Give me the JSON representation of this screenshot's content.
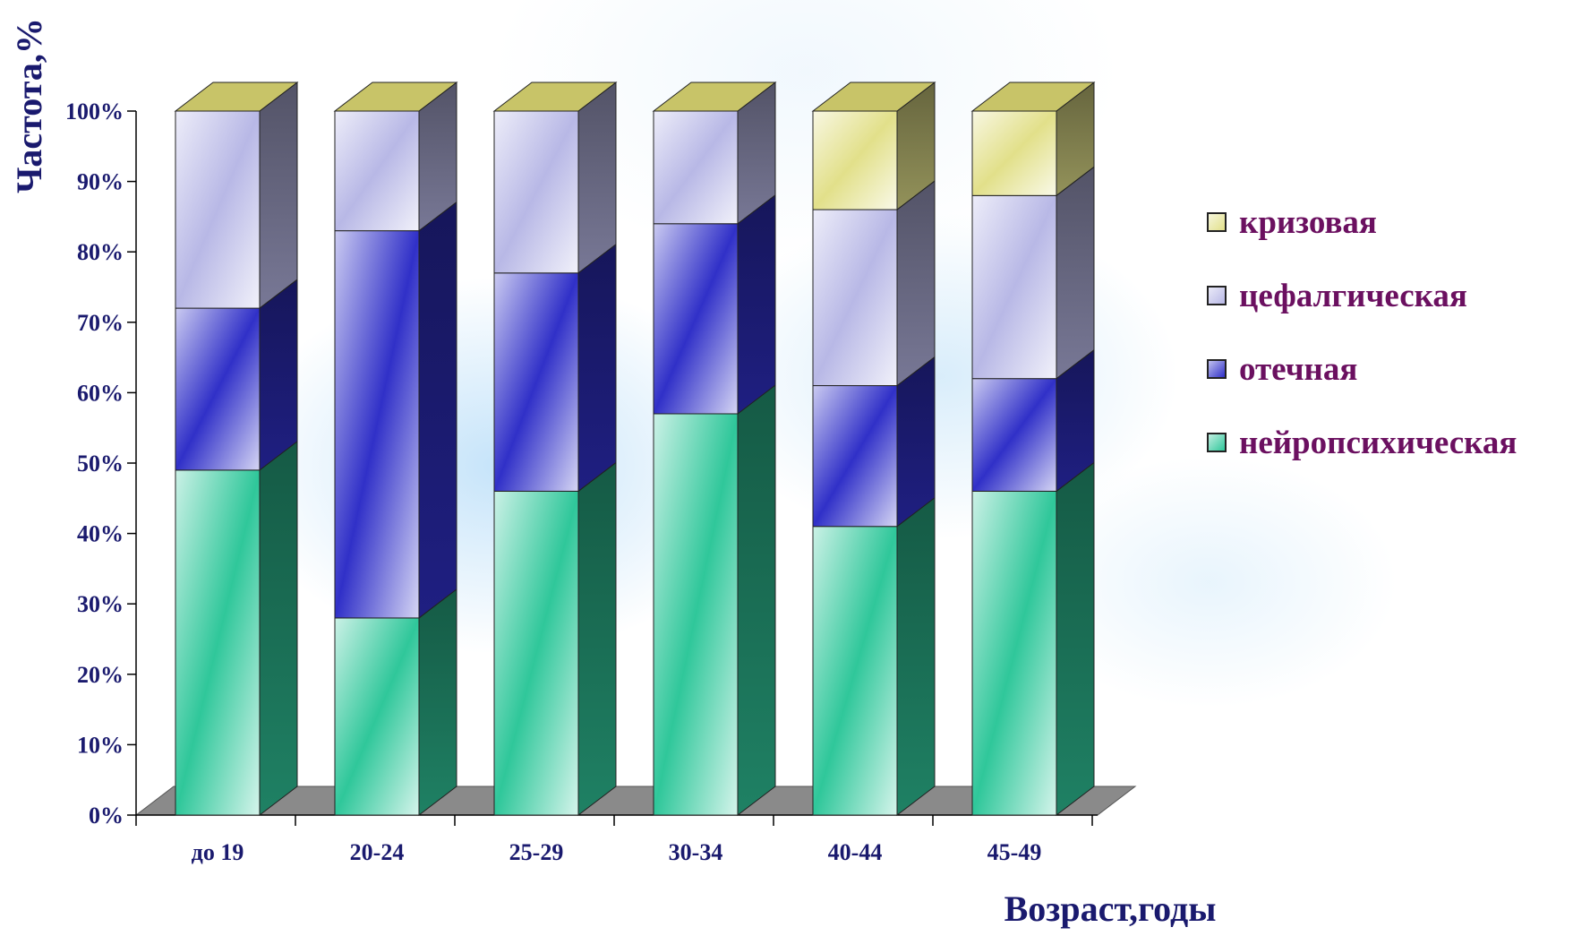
{
  "chart_data": {
    "type": "bar",
    "stacked": true,
    "three_d": true,
    "ylabel": "Частота,%",
    "xlabel": "Возраст,годы",
    "ylim": [
      0,
      100
    ],
    "yticks": [
      "0%",
      "10%",
      "20%",
      "30%",
      "40%",
      "50%",
      "60%",
      "70%",
      "80%",
      "90%",
      "100%"
    ],
    "categories": [
      "до 19",
      "20-24",
      "25-29",
      "30-34",
      "40-44",
      "45-49"
    ],
    "series": [
      {
        "name": "нейропсихическая",
        "values": [
          49,
          28,
          46,
          57,
          41,
          46
        ],
        "color": "#2fc79a"
      },
      {
        "name": "отечная",
        "values": [
          23,
          55,
          31,
          27,
          20,
          16
        ],
        "color": "#3030c8"
      },
      {
        "name": "цефалгическая",
        "values": [
          28,
          17,
          23,
          16,
          25,
          26
        ],
        "color": "#b8b8e6"
      },
      {
        "name": "кризовая",
        "values": [
          0,
          0,
          0,
          0,
          14,
          12
        ],
        "color": "#e2e08a"
      }
    ],
    "legend_position": "right",
    "legend_order": [
      "кризовая",
      "цефалгическая",
      "отечная",
      "нейропсихическая"
    ]
  }
}
